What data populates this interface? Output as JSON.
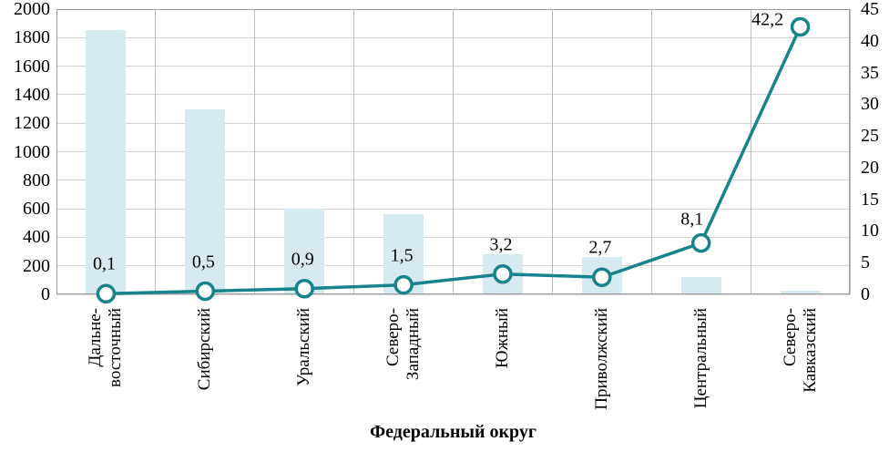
{
  "chart_data": {
    "type": "combo",
    "subtype": "bar+line",
    "title": "",
    "xlabel": "Федеральный округ",
    "categories": [
      [
        "Дальне-",
        "восточный"
      ],
      [
        "Сибирский"
      ],
      [
        "Уральский"
      ],
      [
        "Северо-",
        "Западный"
      ],
      [
        "Южный"
      ],
      [
        "Приволжский"
      ],
      [
        "Центральный"
      ],
      [
        "Северо-",
        "Кавказский"
      ]
    ],
    "series": [
      {
        "name": "bars-left-axis",
        "type": "bar",
        "axis": "left",
        "values": [
          1850,
          1300,
          600,
          560,
          280,
          260,
          120,
          25
        ],
        "color": "#d7eaf2"
      },
      {
        "name": "line-right-axis",
        "type": "line",
        "axis": "right",
        "values": [
          0.1,
          0.5,
          0.9,
          1.5,
          3.2,
          2.7,
          8.1,
          42.2
        ],
        "point_labels": [
          "0,1",
          "0,5",
          "0,9",
          "1,5",
          "3,2",
          "2,7",
          "8,1",
          "42,2"
        ],
        "color": "#17838c",
        "marker": "circle-open"
      }
    ],
    "left_axis": {
      "min": 0,
      "max": 2000,
      "ticks": [
        "2000",
        "1800",
        "1600",
        "1400",
        "1200",
        "1000",
        "800",
        "600",
        "400",
        "200",
        "0"
      ]
    },
    "right_axis": {
      "min": 0,
      "max": 45,
      "ticks": [
        "45",
        "40",
        "35",
        "30",
        "25",
        "20",
        "15",
        "10",
        "5",
        "0"
      ]
    },
    "grid": {
      "horizontal": true,
      "vertical": true
    },
    "legend": false
  },
  "colors": {
    "bar_fill": "#d7eaf2",
    "line_stroke": "#17838c",
    "marker_fill": "#ffffff",
    "gridline_h": "#d2d2d2",
    "gridline_v": "#bdbdbd",
    "plot_border": "#9e9e9e",
    "text": "#000000",
    "background": "#ffffff"
  }
}
